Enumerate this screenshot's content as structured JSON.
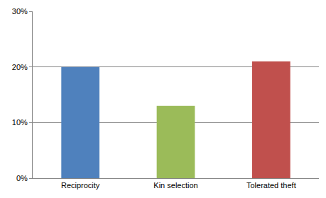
{
  "chart_data": {
    "type": "bar",
    "categories": [
      "Reciprocity",
      "Kin selection",
      "Tolerated theft"
    ],
    "values": [
      20,
      13,
      21
    ],
    "colors": [
      "#4f81bd",
      "#9bbb59",
      "#c0504d"
    ],
    "ylim": [
      0,
      30
    ],
    "yticks": [
      {
        "value": 0,
        "label": "0%"
      },
      {
        "value": 10,
        "label": "10%"
      },
      {
        "value": 20,
        "label": "20%"
      },
      {
        "value": 30,
        "label": "30%"
      }
    ],
    "grid": true
  }
}
